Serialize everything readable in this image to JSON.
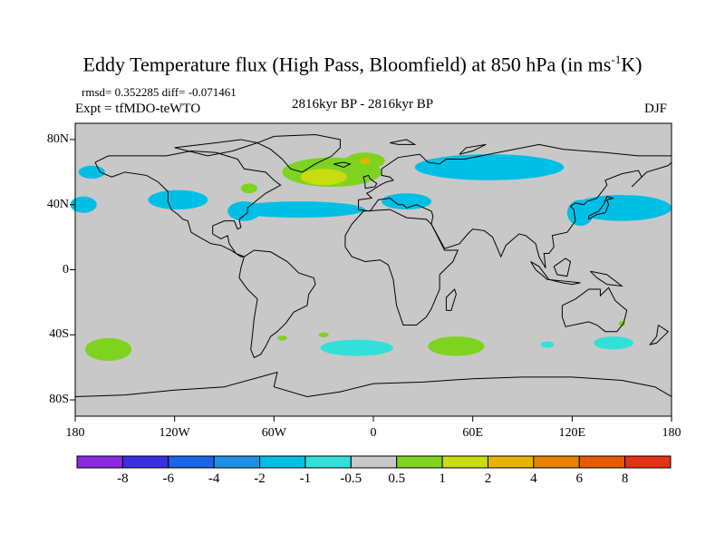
{
  "title": {
    "main": "Eddy Temperature flux (High Pass, Bloomfield) at 850 hPa (in ms",
    "sup": "-1",
    "end": "K)"
  },
  "stats": "rmsd= 0.352285 diff= -0.071461",
  "experiment": "Expt = tfMDO-teWTO",
  "period": "2816kyr BP - 2816kyr BP",
  "season": "DJF",
  "x_ticks": [
    "180",
    "120W",
    "60W",
    "0",
    "60E",
    "120E",
    "180"
  ],
  "y_ticks": [
    "80N",
    "40N",
    "0",
    "40S",
    "80S"
  ],
  "colorbar": {
    "labels": [
      "-8",
      "-6",
      "-4",
      "-2",
      "-1",
      "-0.5",
      "0.5",
      "1",
      "2",
      "4",
      "6",
      "8"
    ],
    "colors": [
      "#8a2be2",
      "#3b2ee0",
      "#1e64e6",
      "#1e90e6",
      "#00bfe6",
      "#33e0d8",
      "#c8c8c8",
      "#7ed320",
      "#c8dc10",
      "#e6b400",
      "#e68200",
      "#e65a00",
      "#e63214"
    ]
  },
  "map_colors": {
    "background": "#c8c8c8",
    "coast": "#000000",
    "neg_weak": "#33e0d8",
    "neg_mod": "#00bfe6",
    "pos_weak": "#7ed320",
    "pos_mod": "#c8dc10",
    "pos_strong": "#e6b400"
  },
  "anomalies": [
    {
      "name": "north-atlantic-positive",
      "level": "pos_weak",
      "lon": -25,
      "lat": 60,
      "rlon": 30,
      "rlat": 9
    },
    {
      "name": "greenland-sea-positive",
      "level": "pos_weak",
      "lon": -5,
      "lat": 67,
      "rlon": 12,
      "rlat": 5
    },
    {
      "name": "north-atlantic-core",
      "level": "pos_mod",
      "lon": -30,
      "lat": 57,
      "rlon": 14,
      "rlat": 5
    },
    {
      "name": "norwegian-sea-core",
      "level": "pos_strong",
      "lon": -5,
      "lat": 67,
      "rlon": 3,
      "rlat": 2
    },
    {
      "name": "labrador-positive",
      "level": "pos_weak",
      "lon": -75,
      "lat": 50,
      "rlon": 5,
      "rlat": 3
    },
    {
      "name": "north-pacific-west-negative",
      "level": "neg_mod",
      "lon": -175,
      "lat": 40,
      "rlon": 8,
      "rlat": 5
    },
    {
      "name": "north-pacific-arctic-negative",
      "level": "neg_mod",
      "lon": -170,
      "lat": 60,
      "rlon": 8,
      "rlat": 4
    },
    {
      "name": "north-america-negative",
      "level": "neg_mod",
      "lon": -118,
      "lat": 43,
      "rlon": 18,
      "rlat": 6
    },
    {
      "name": "atlantic-midlat-negative",
      "level": "neg_mod",
      "lon": -45,
      "lat": 37,
      "rlon": 40,
      "rlat": 5
    },
    {
      "name": "west-atlantic-negative",
      "level": "neg_mod",
      "lon": -78,
      "lat": 36,
      "rlon": 10,
      "rlat": 6
    },
    {
      "name": "eurasia-north-negative",
      "level": "neg_mod",
      "lon": 70,
      "lat": 63,
      "rlon": 45,
      "rlat": 8
    },
    {
      "name": "europe-negative",
      "level": "neg_mod",
      "lon": 20,
      "lat": 42,
      "rlon": 15,
      "rlat": 5
    },
    {
      "name": "east-asia-negative",
      "level": "neg_mod",
      "lon": 150,
      "lat": 38,
      "rlon": 30,
      "rlat": 8
    },
    {
      "name": "east-asia-inner-negative",
      "level": "neg_mod",
      "lon": 125,
      "lat": 35,
      "rlon": 8,
      "rlat": 8
    },
    {
      "name": "south-pacific-positive",
      "level": "pos_weak",
      "lon": -160,
      "lat": -49,
      "rlon": 14,
      "rlat": 7
    },
    {
      "name": "south-atlantic-negative",
      "level": "neg_weak",
      "lon": -10,
      "lat": -48,
      "rlon": 22,
      "rlat": 5
    },
    {
      "name": "indian-ocean-positive",
      "level": "pos_weak",
      "lon": 50,
      "lat": -47,
      "rlon": 17,
      "rlat": 6
    },
    {
      "name": "australia-south-negative",
      "level": "neg_weak",
      "lon": 145,
      "lat": -45,
      "rlon": 12,
      "rlat": 4
    },
    {
      "name": "southern-ocean-small-negative",
      "level": "neg_weak",
      "lon": 105,
      "lat": -46,
      "rlon": 4,
      "rlat": 2
    },
    {
      "name": "small-positive-pacific",
      "level": "pos_weak",
      "lon": -55,
      "lat": -42,
      "rlon": 3,
      "rlat": 1.5
    },
    {
      "name": "small-positive-atlantic",
      "level": "pos_weak",
      "lon": -30,
      "lat": -40,
      "rlon": 3,
      "rlat": 1.5
    },
    {
      "name": "small-positive-nz",
      "level": "pos_weak",
      "lon": 150,
      "lat": -33,
      "rlon": 2,
      "rlat": 1.5
    }
  ]
}
